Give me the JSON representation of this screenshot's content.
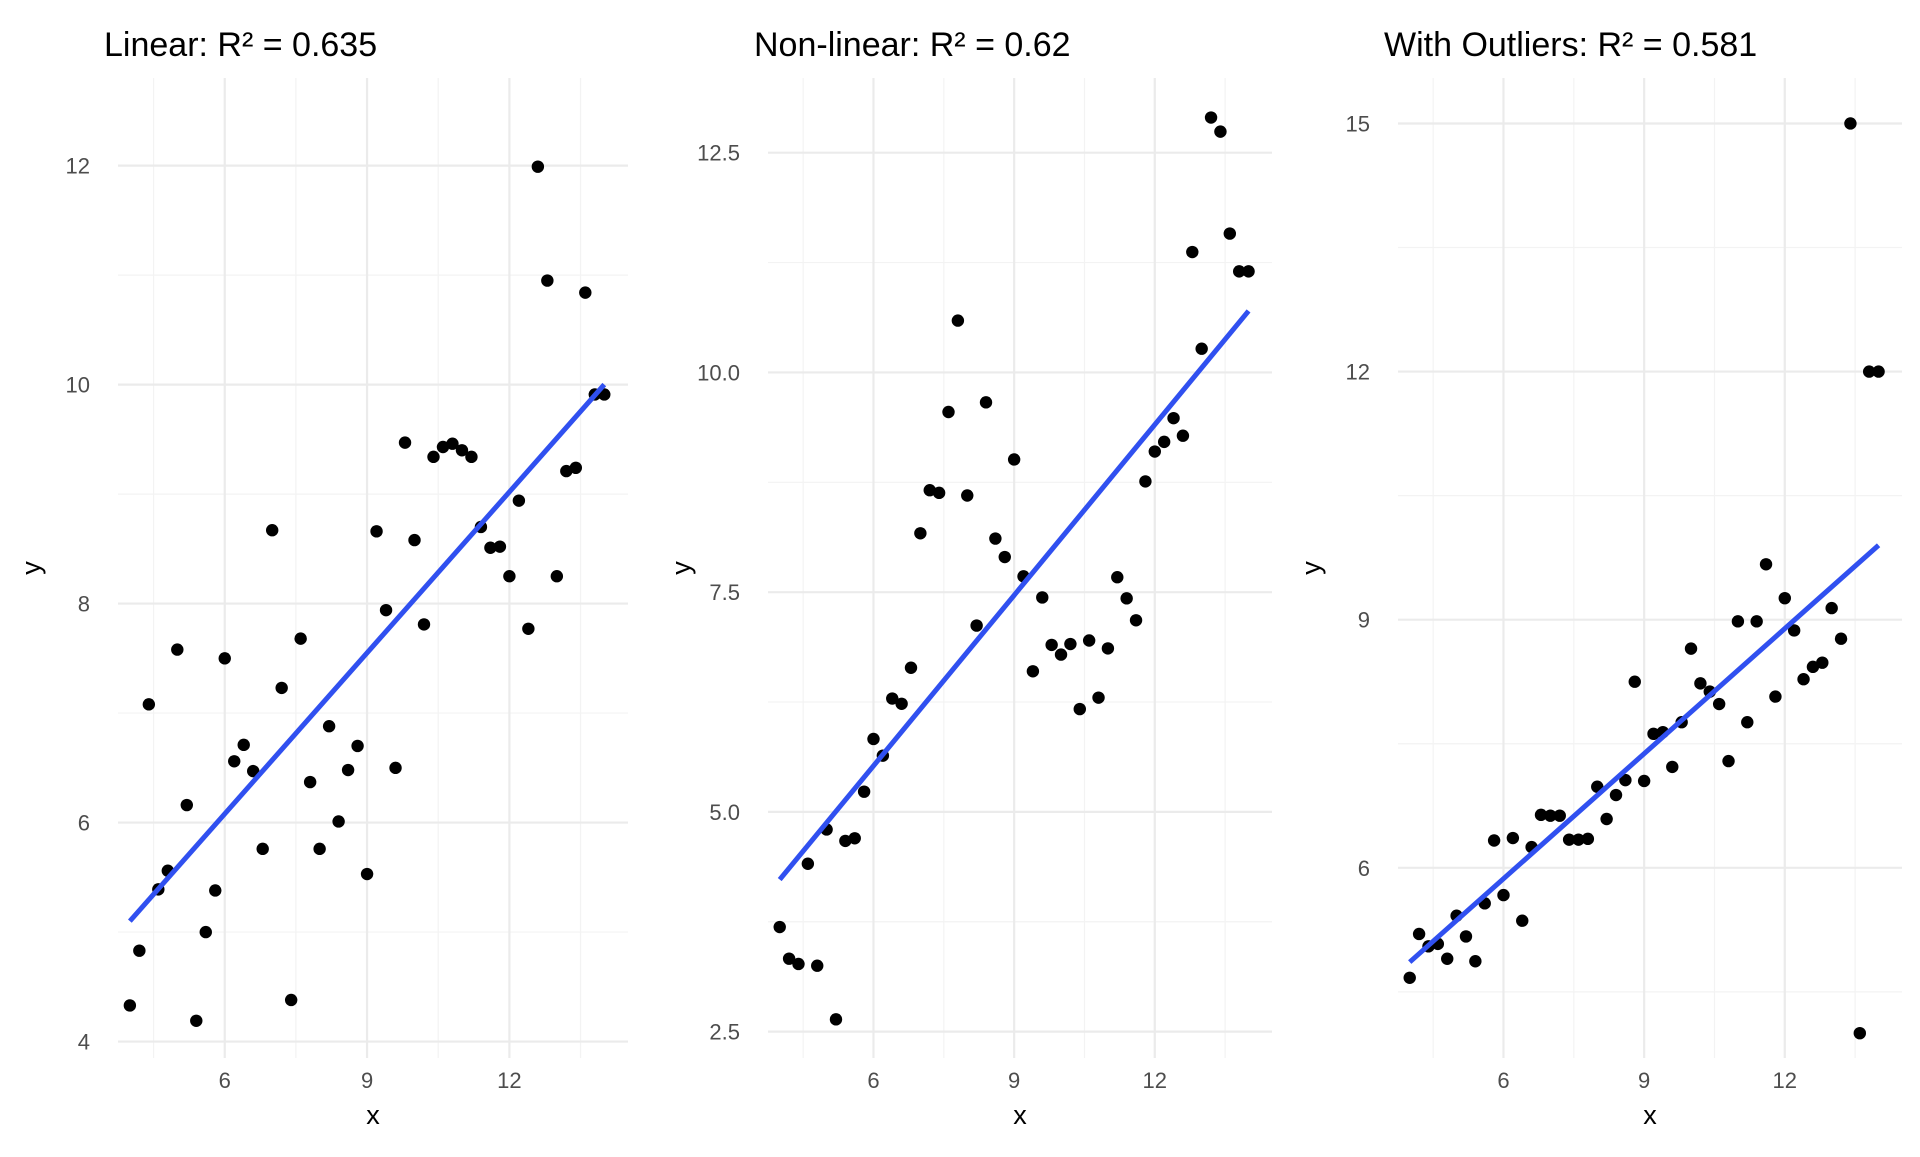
{
  "chart_data": [
    {
      "type": "scatter",
      "title": "Linear: R² = 0.635",
      "xlabel": "x",
      "ylabel": "y",
      "xlim": [
        3.75,
        14.5
      ],
      "ylim": [
        3.85,
        12.8
      ],
      "xticks": [
        6,
        9,
        12
      ],
      "xtick_labels": [
        "6",
        "9",
        "12"
      ],
      "yticks": [
        4,
        6,
        8,
        10,
        12
      ],
      "ytick_labels": [
        "4",
        "6",
        "8",
        "10",
        "12"
      ],
      "grid": true,
      "series": [
        {
          "x": [
            4.0,
            4.2,
            4.4,
            4.6,
            4.8,
            5.0,
            5.2,
            5.4,
            5.6,
            5.8,
            6.0,
            6.2,
            6.4,
            6.6,
            6.8,
            7.0,
            7.2,
            7.4,
            7.6,
            7.8,
            8.0,
            8.2,
            8.4,
            8.6,
            8.8,
            9.0,
            9.2,
            9.4,
            9.6,
            9.8,
            10.0,
            10.2,
            10.4,
            10.6,
            10.8,
            11.0,
            11.2,
            11.4,
            11.6,
            11.8,
            12.0,
            12.2,
            12.4,
            12.6,
            12.8,
            13.0,
            13.2,
            13.4,
            13.6,
            13.8,
            14.0
          ],
          "y": [
            4.33,
            4.83,
            7.08,
            5.39,
            5.56,
            7.58,
            6.16,
            4.19,
            5.0,
            5.38,
            7.5,
            6.56,
            6.71,
            6.47,
            5.76,
            8.67,
            7.23,
            4.38,
            7.68,
            6.37,
            5.76,
            6.88,
            6.01,
            6.48,
            6.7,
            5.53,
            8.66,
            7.94,
            6.5,
            9.47,
            8.58,
            7.81,
            9.34,
            9.43,
            9.46,
            9.4,
            9.34,
            8.7,
            8.51,
            8.52,
            8.25,
            8.94,
            7.77,
            11.99,
            10.95,
            8.25,
            9.21,
            9.24,
            10.84,
            9.91,
            9.91
          ]
        }
      ],
      "fit_line": {
        "x": [
          4.0,
          14.0
        ],
        "y": [
          5.1,
          10.0
        ]
      }
    },
    {
      "type": "scatter",
      "title": "Non-linear: R² = 0.62",
      "xlabel": "x",
      "ylabel": "y",
      "xlim": [
        3.75,
        14.5
      ],
      "ylim": [
        2.2,
        13.35
      ],
      "xticks": [
        6,
        9,
        12
      ],
      "xtick_labels": [
        "6",
        "9",
        "12"
      ],
      "yticks": [
        2.5,
        5.0,
        7.5,
        10.0,
        12.5
      ],
      "ytick_labels": [
        "2.5",
        "5.0",
        "7.5",
        "10.0",
        "12.5"
      ],
      "grid": true,
      "series": [
        {
          "x": [
            4.0,
            4.2,
            4.4,
            4.6,
            4.8,
            5.0,
            5.2,
            5.4,
            5.6,
            5.8,
            6.0,
            6.2,
            6.4,
            6.6,
            6.8,
            7.0,
            7.2,
            7.4,
            7.6,
            7.8,
            8.0,
            8.2,
            8.4,
            8.6,
            8.8,
            9.0,
            9.2,
            9.4,
            9.6,
            9.8,
            10.0,
            10.2,
            10.4,
            10.6,
            10.8,
            11.0,
            11.2,
            11.4,
            11.6,
            11.8,
            12.0,
            12.2,
            12.4,
            12.6,
            12.8,
            13.0,
            13.2,
            13.4,
            13.6,
            13.8,
            14.0
          ],
          "y": [
            3.69,
            3.33,
            3.27,
            4.41,
            3.25,
            4.8,
            2.64,
            4.67,
            4.7,
            5.23,
            5.83,
            5.64,
            6.29,
            6.23,
            6.64,
            8.17,
            8.66,
            8.63,
            9.55,
            10.59,
            8.6,
            7.12,
            9.66,
            8.11,
            7.9,
            9.01,
            7.68,
            6.6,
            7.44,
            6.9,
            6.79,
            6.91,
            6.17,
            6.95,
            6.3,
            6.86,
            7.67,
            7.43,
            7.18,
            8.76,
            9.1,
            9.21,
            9.48,
            9.28,
            11.37,
            10.27,
            12.9,
            12.74,
            11.58,
            11.15,
            11.15
          ]
        }
      ],
      "fit_line": {
        "x": [
          4.0,
          14.0
        ],
        "y": [
          4.23,
          10.7
        ]
      }
    },
    {
      "type": "scatter",
      "title": "With Outliers: R² = 0.581",
      "xlabel": "x",
      "ylabel": "y",
      "xlim": [
        3.75,
        14.5
      ],
      "ylim": [
        3.7,
        15.55
      ],
      "xticks": [
        6,
        9,
        12
      ],
      "xtick_labels": [
        "6",
        "9",
        "12"
      ],
      "yticks": [
        6,
        9,
        12,
        15
      ],
      "ytick_labels": [
        "6",
        "9",
        "12",
        "15"
      ],
      "grid": true,
      "series": [
        {
          "x": [
            4.0,
            4.2,
            4.4,
            4.6,
            4.8,
            5.0,
            5.2,
            5.4,
            5.6,
            5.8,
            6.0,
            6.2,
            6.4,
            6.6,
            6.8,
            7.0,
            7.2,
            7.4,
            7.6,
            7.8,
            8.0,
            8.2,
            8.4,
            8.6,
            8.8,
            9.0,
            9.2,
            9.4,
            9.6,
            9.8,
            10.0,
            10.2,
            10.4,
            10.6,
            10.8,
            11.0,
            11.2,
            11.4,
            11.6,
            11.8,
            12.0,
            12.2,
            12.4,
            12.6,
            12.8,
            13.0,
            13.2,
            13.4,
            13.6,
            13.8,
            14.0
          ],
          "y": [
            4.67,
            5.2,
            5.05,
            5.08,
            4.9,
            5.42,
            5.17,
            4.87,
            5.57,
            6.33,
            5.67,
            6.36,
            5.36,
            6.25,
            6.64,
            6.63,
            6.63,
            6.34,
            6.34,
            6.35,
            6.98,
            6.59,
            6.88,
            7.06,
            8.25,
            7.05,
            7.62,
            7.64,
            7.22,
            7.76,
            8.65,
            8.23,
            8.13,
            7.98,
            7.29,
            8.98,
            7.76,
            8.98,
            9.67,
            8.07,
            9.26,
            8.87,
            8.28,
            8.43,
            8.48,
            9.14,
            8.77,
            15.0,
            4.0,
            12.0,
            12.0
          ]
        }
      ],
      "fit_line": {
        "x": [
          4.0,
          14.0
        ],
        "y": [
          4.86,
          9.9
        ]
      }
    }
  ]
}
